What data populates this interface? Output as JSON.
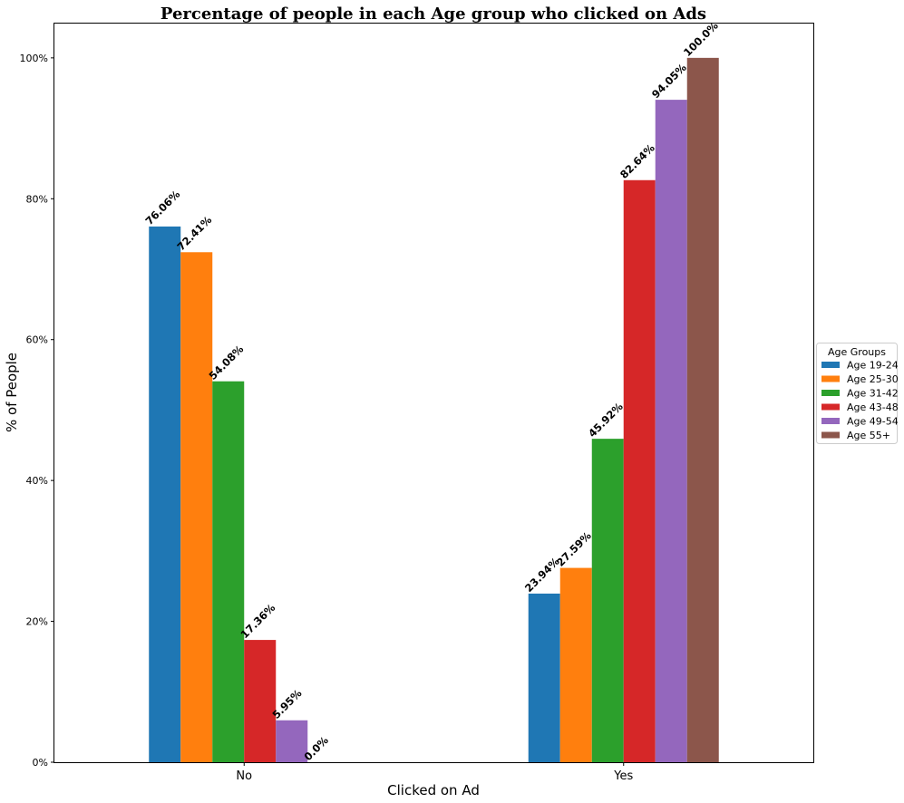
{
  "chart_data": {
    "type": "bar",
    "title": "Percentage of people in each Age group who clicked on Ads",
    "xlabel": "Clicked on Ad",
    "ylabel": "% of People",
    "categories": [
      "No",
      "Yes"
    ],
    "ylim": [
      0,
      105
    ],
    "yticks": [
      0,
      20,
      40,
      60,
      80,
      100
    ],
    "ytick_labels": [
      "0%",
      "20%",
      "40%",
      "60%",
      "80%",
      "100%"
    ],
    "grid": false,
    "legend": {
      "title": "Age Groups",
      "placement": "center-right-outside"
    },
    "series": [
      {
        "name": "Age 19-24",
        "color": "#1f77b4",
        "values": [
          76.06,
          23.94
        ],
        "labels": [
          "76.06%",
          "23.94%"
        ]
      },
      {
        "name": "Age 25-30",
        "color": "#ff7f0e",
        "values": [
          72.41,
          27.59
        ],
        "labels": [
          "72.41%",
          "27.59%"
        ]
      },
      {
        "name": "Age 31-42",
        "color": "#2ca02c",
        "values": [
          54.08,
          45.92
        ],
        "labels": [
          "54.08%",
          "45.92%"
        ]
      },
      {
        "name": "Age 43-48",
        "color": "#d62728",
        "values": [
          17.36,
          82.64
        ],
        "labels": [
          "17.36%",
          "82.64%"
        ]
      },
      {
        "name": "Age 49-54",
        "color": "#9467bd",
        "values": [
          5.95,
          94.05
        ],
        "labels": [
          "5.95%",
          "94.05%"
        ]
      },
      {
        "name": "Age 55+",
        "color": "#8c564b",
        "values": [
          0.0,
          100.0
        ],
        "labels": [
          "0.0%",
          "100.0%"
        ]
      }
    ]
  }
}
